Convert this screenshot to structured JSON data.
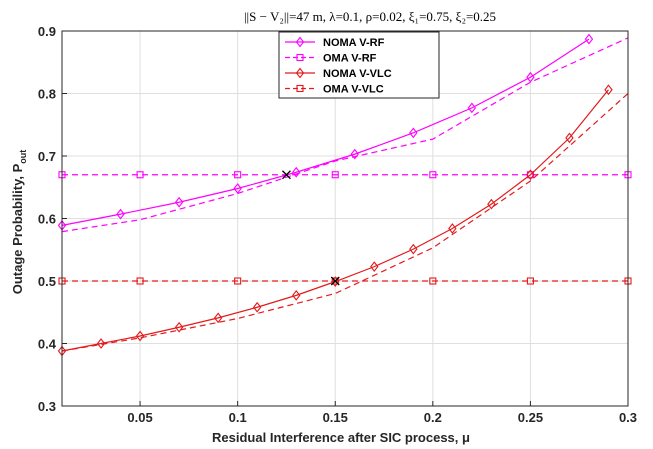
{
  "chart_data": {
    "type": "line",
    "title": "||S − V₂||=47 m, λ=0.1, ρ=0.02, ξ₁=0.75, ξ₂=0.25",
    "xlabel": "Residual Interference after SIC process, μ",
    "ylabel": "Outage Probability, P",
    "ylabel_sub": "out",
    "xlim": [
      0.01,
      0.3
    ],
    "ylim": [
      0.3,
      0.9
    ],
    "xticks": [
      0.05,
      0.1,
      0.15,
      0.2,
      0.25,
      0.3
    ],
    "xtick_labels": [
      "0.05",
      "0.1",
      "0.15",
      "0.2",
      "0.25",
      "0.3"
    ],
    "yticks": [
      0.3,
      0.4,
      0.5,
      0.6,
      0.7,
      0.8,
      0.9
    ],
    "ytick_labels": [
      "0.3",
      "0.4",
      "0.5",
      "0.6",
      "0.7",
      "0.8",
      "0.9"
    ],
    "grid": true,
    "legend_position": "top-center",
    "series": [
      {
        "name": "NOMA V-RF",
        "color": "#ff00ff",
        "dash": "solid",
        "marker": "diamond",
        "line_x": [
          0.01,
          0.04,
          0.07,
          0.1,
          0.13,
          0.16,
          0.19,
          0.22,
          0.25,
          0.28
        ],
        "line_y": [
          0.589,
          0.607,
          0.626,
          0.648,
          0.674,
          0.703,
          0.737,
          0.777,
          0.826,
          0.887
        ],
        "marker_x": [
          0.01,
          0.04,
          0.07,
          0.1,
          0.13,
          0.16,
          0.19,
          0.22,
          0.25,
          0.28
        ],
        "marker_y": [
          0.589,
          0.607,
          0.626,
          0.648,
          0.674,
          0.703,
          0.737,
          0.777,
          0.826,
          0.887
        ]
      },
      {
        "name": "OMA V-RF",
        "color": "#ff00ff",
        "dash": "dashed",
        "marker": "square",
        "line_x": [
          0.01,
          0.05,
          0.1,
          0.15,
          0.2,
          0.25,
          0.3
        ],
        "line_y": [
          0.579,
          0.598,
          0.64,
          0.692,
          0.727,
          0.818,
          0.889
        ],
        "marker_x": [
          0.01,
          0.05,
          0.1,
          0.15,
          0.2,
          0.25,
          0.3
        ],
        "marker_y": [
          0.67,
          0.67,
          0.67,
          0.67,
          0.67,
          0.67,
          0.67
        ],
        "const_line_y": 0.67
      },
      {
        "name": "NOMA V-VLC",
        "color": "#e31a1c",
        "dash": "solid",
        "marker": "diamond",
        "line_x": [
          0.01,
          0.03,
          0.05,
          0.07,
          0.09,
          0.11,
          0.13,
          0.15,
          0.17,
          0.19,
          0.21,
          0.23,
          0.25,
          0.27,
          0.29
        ],
        "line_y": [
          0.388,
          0.4,
          0.412,
          0.426,
          0.441,
          0.458,
          0.477,
          0.499,
          0.523,
          0.551,
          0.584,
          0.623,
          0.67,
          0.729,
          0.806
        ],
        "marker_x": [
          0.01,
          0.03,
          0.05,
          0.07,
          0.09,
          0.11,
          0.13,
          0.15,
          0.17,
          0.19,
          0.21,
          0.23,
          0.25,
          0.27,
          0.29
        ],
        "marker_y": [
          0.388,
          0.4,
          0.412,
          0.426,
          0.441,
          0.458,
          0.477,
          0.499,
          0.523,
          0.551,
          0.584,
          0.623,
          0.67,
          0.729,
          0.806
        ]
      },
      {
        "name": "OMA V-VLC",
        "color": "#e31a1c",
        "dash": "dashed",
        "marker": "square",
        "line_x": [
          0.01,
          0.05,
          0.1,
          0.15,
          0.2,
          0.25,
          0.3
        ],
        "line_y": [
          0.388,
          0.409,
          0.44,
          0.48,
          0.553,
          0.66,
          0.8
        ],
        "marker_x": [
          0.01,
          0.05,
          0.1,
          0.15,
          0.2,
          0.25,
          0.3
        ],
        "marker_y": [
          0.5,
          0.5,
          0.5,
          0.5,
          0.5,
          0.5,
          0.5
        ],
        "const_line_y": 0.5
      }
    ],
    "annotations": [
      {
        "marker": "x",
        "x": 0.125,
        "y": 0.67,
        "color": "#000000"
      },
      {
        "marker": "x",
        "x": 0.15,
        "y": 0.5,
        "color": "#000000"
      }
    ]
  }
}
